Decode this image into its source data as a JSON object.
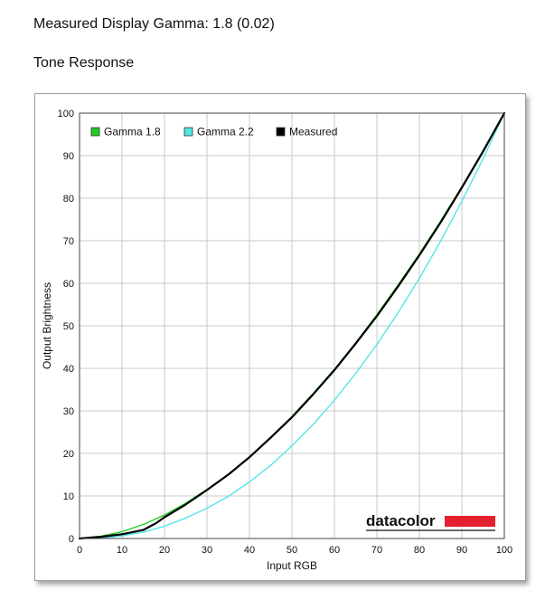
{
  "header": {
    "gamma_text": "Measured Display Gamma: 1.8 (0.02)",
    "section_title": "Tone Response"
  },
  "logo": {
    "text": "datacolor",
    "bar_color": "#e5202e"
  },
  "chart_data": {
    "type": "line",
    "title": "Tone Response",
    "xlabel": "Input RGB",
    "ylabel": "Output Brightness",
    "xlim": [
      0,
      100
    ],
    "ylim": [
      0,
      100
    ],
    "xticks": [
      0,
      10,
      20,
      30,
      40,
      50,
      60,
      70,
      80,
      90,
      100
    ],
    "yticks": [
      0,
      10,
      20,
      30,
      40,
      50,
      60,
      70,
      80,
      90,
      100
    ],
    "grid": true,
    "legend_position": "top-left",
    "series": [
      {
        "name": "Gamma 1.8",
        "color": "#22cc22",
        "x": [
          0,
          5,
          10,
          15,
          20,
          25,
          30,
          35,
          40,
          45,
          50,
          55,
          60,
          65,
          70,
          75,
          80,
          85,
          90,
          95,
          100
        ],
        "y": [
          0,
          0.5,
          1.6,
          3.3,
          5.5,
          8.3,
          11.5,
          15.1,
          19.2,
          23.8,
          28.7,
          34.1,
          39.8,
          46.0,
          52.6,
          59.6,
          66.9,
          74.6,
          82.7,
          91.2,
          100
        ]
      },
      {
        "name": "Gamma 2.2",
        "color": "#55e6e6",
        "x": [
          0,
          5,
          10,
          15,
          20,
          25,
          30,
          35,
          40,
          45,
          50,
          55,
          60,
          65,
          70,
          75,
          80,
          85,
          90,
          95,
          100
        ],
        "y": [
          0,
          0.1,
          0.6,
          1.5,
          2.9,
          4.8,
          7.1,
          9.9,
          13.3,
          17.2,
          21.8,
          26.8,
          32.5,
          38.8,
          45.6,
          53.1,
          61.2,
          69.9,
          79.3,
          89.3,
          100
        ]
      },
      {
        "name": "Measured",
        "color": "#000000",
        "x": [
          0,
          5,
          10,
          15,
          18,
          20,
          25,
          30,
          35,
          40,
          45,
          50,
          55,
          60,
          65,
          70,
          75,
          80,
          85,
          90,
          95,
          100
        ],
        "y": [
          0,
          0.4,
          1.0,
          2.0,
          3.6,
          5.0,
          8.0,
          11.4,
          15.0,
          19.1,
          23.7,
          28.5,
          33.9,
          39.6,
          45.8,
          52.3,
          59.3,
          66.6,
          74.3,
          82.5,
          91.0,
          100
        ]
      }
    ]
  }
}
